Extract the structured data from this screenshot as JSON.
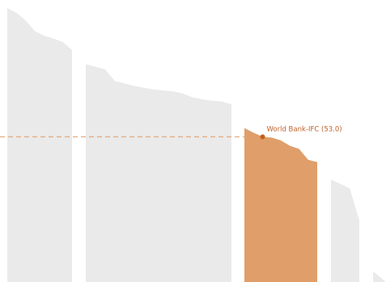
{
  "colors": {
    "background": "#ffffff",
    "muted_area": "#eaeaea",
    "highlight_area": "#df9e6a",
    "highlight_marker": "#c85f18",
    "annotation_text": "#c0612a",
    "reference_line": "#e2a172"
  },
  "chart_data": {
    "type": "area",
    "title": "",
    "xlabel": "",
    "ylabel": "",
    "grid": false,
    "legend": "none",
    "ylim": [
      0,
      100
    ],
    "groups": [
      {
        "name": "",
        "highlighted": false,
        "values": [
          100,
          98.3,
          95.4,
          91.5,
          89.9,
          88.9,
          87.6,
          84.7
        ]
      },
      {
        "name": "",
        "highlighted": false,
        "values": [
          79.5,
          78.6,
          77.6,
          73.3,
          72.5,
          71.6,
          70.9,
          70.3,
          69.9,
          69.6,
          68.8,
          67.4,
          66.7,
          66.2,
          65.9,
          64.9
        ]
      },
      {
        "name": "",
        "highlighted": true,
        "values": [
          56.2,
          54.5,
          53.0,
          52.7,
          51.7,
          49.7,
          48.6,
          44.6,
          43.8
        ]
      },
      {
        "name": "",
        "highlighted": false,
        "values": [
          37.4,
          35.8,
          34.2,
          22.4
        ]
      },
      {
        "name": "",
        "highlighted": false,
        "values": [
          3.9,
          0
        ]
      }
    ],
    "annotation": {
      "label": "World Bank-IFC (53.0)",
      "group": 2,
      "index": 2,
      "value": 53.0
    }
  }
}
